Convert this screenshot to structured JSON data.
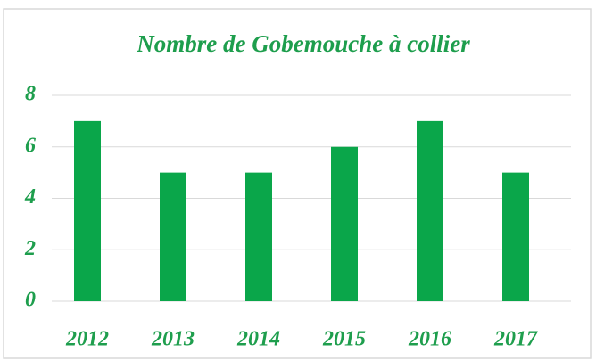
{
  "chart_data": {
    "type": "bar",
    "title": "Nombre de Gobemouche à collier",
    "categories": [
      "2012",
      "2013",
      "2014",
      "2015",
      "2016",
      "2017"
    ],
    "values": [
      7,
      5,
      5,
      6,
      7,
      5
    ],
    "color": "#0aa64a",
    "ylim": [
      0,
      8
    ],
    "yticks": [
      0,
      2,
      4,
      6,
      8
    ],
    "grid": true
  }
}
